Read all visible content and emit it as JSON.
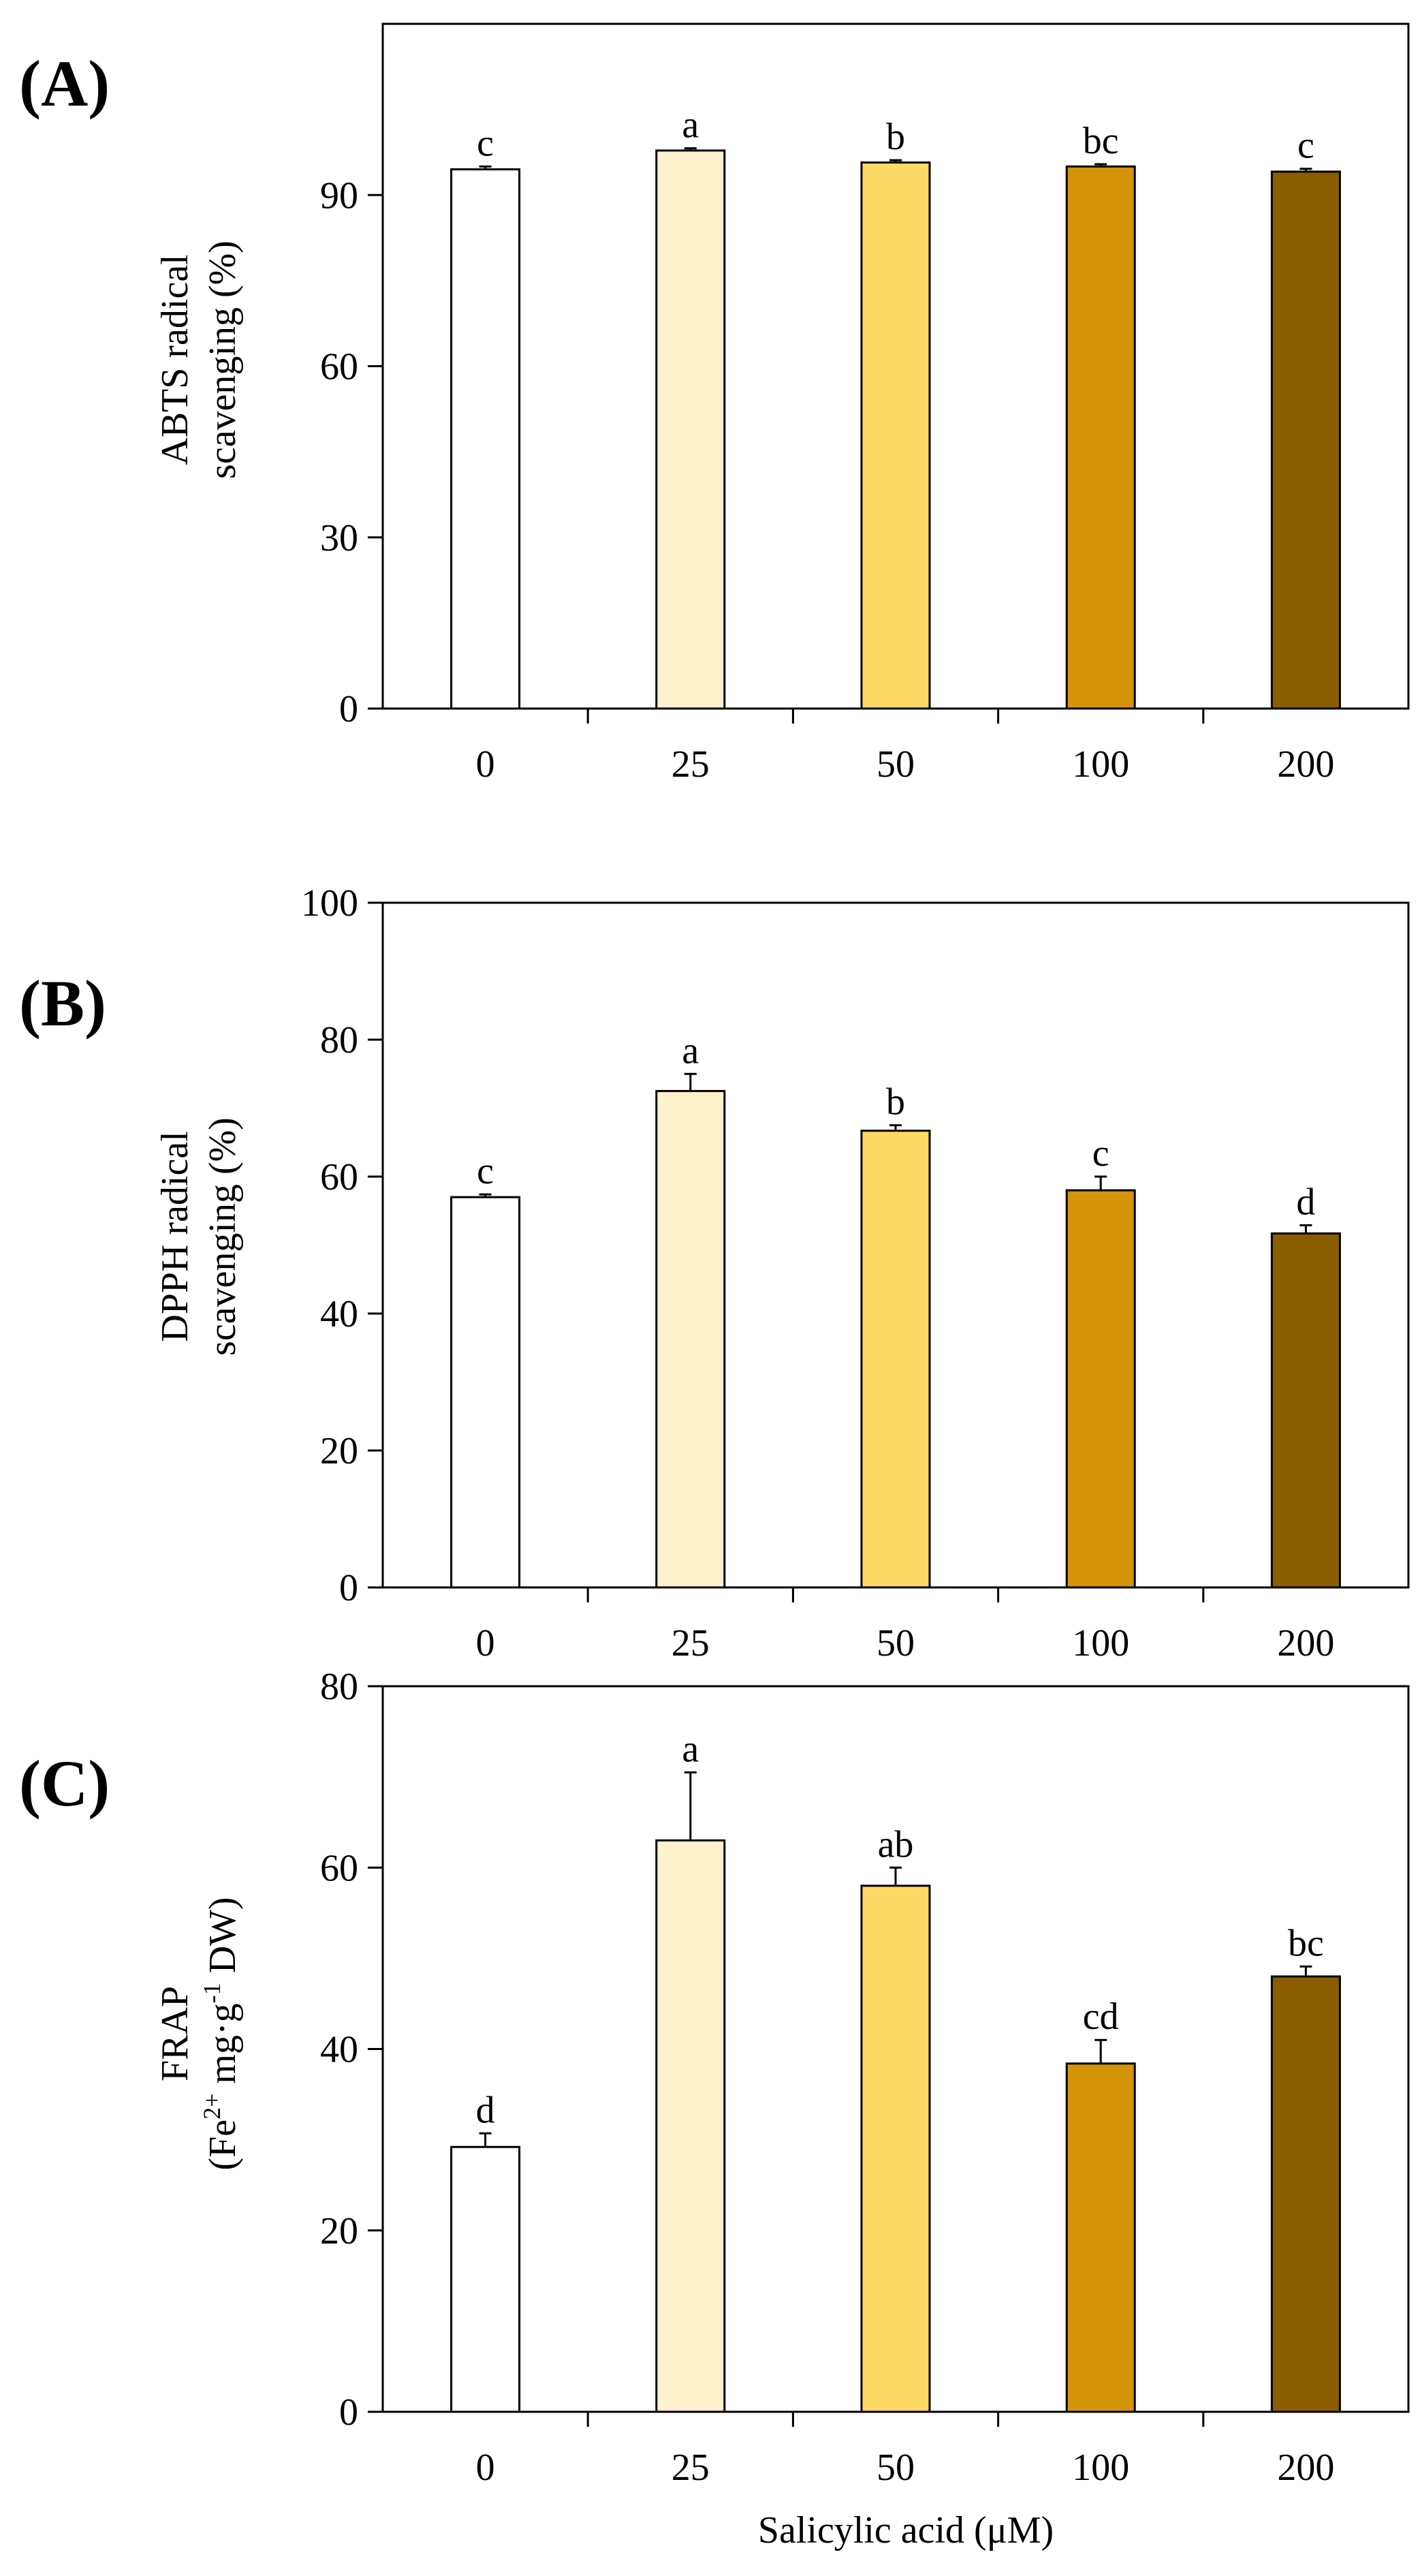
{
  "chart_data": [
    {
      "type": "bar",
      "panel_label": "(A)",
      "categories": [
        "0",
        "25",
        "50",
        "100",
        "200"
      ],
      "values": [
        94.5,
        97.8,
        95.7,
        95.0,
        94.1
      ],
      "errors": [
        0.5,
        0.4,
        0.4,
        0.4,
        0.5
      ],
      "significance": [
        "c",
        "a",
        "b",
        "bc",
        "c"
      ],
      "ylabel_lines": [
        "ABTS radical",
        "scavenging (%)"
      ],
      "ylim": [
        0,
        120
      ],
      "yticks": [
        0,
        30,
        60,
        90
      ],
      "colors": [
        "#FFFFFF",
        "#FFF1CC",
        "#FFD966",
        "#D4940A",
        "#8A5E00"
      ]
    },
    {
      "type": "bar",
      "panel_label": "(B)",
      "categories": [
        "0",
        "25",
        "50",
        "100",
        "200"
      ],
      "values": [
        57.0,
        72.5,
        66.7,
        58.0,
        51.7
      ],
      "errors": [
        0.4,
        2.5,
        0.8,
        2.0,
        1.2
      ],
      "significance": [
        "c",
        "a",
        "b",
        "c",
        "d"
      ],
      "ylabel_lines": [
        "DPPH radical",
        "scavenging (%)"
      ],
      "ylim": [
        0,
        100
      ],
      "yticks": [
        0,
        20,
        40,
        60,
        80,
        100
      ],
      "colors": [
        "#FFFFFF",
        "#FFF1CC",
        "#FFD966",
        "#D4940A",
        "#8A5E00"
      ]
    },
    {
      "type": "bar",
      "panel_label": "(C)",
      "categories": [
        "0",
        "25",
        "50",
        "100",
        "200"
      ],
      "values": [
        29.2,
        63.0,
        58.0,
        38.4,
        48.0
      ],
      "errors": [
        1.5,
        7.5,
        2.0,
        2.6,
        1.1
      ],
      "significance": [
        "d",
        "a",
        "ab",
        "cd",
        "bc"
      ],
      "ylabel": {
        "line1": "FRAP",
        "p1": "(Fe",
        "sup1": "2+",
        "p2": " mg·g",
        "sup2": "-1",
        "p3": " DW)"
      },
      "xlabel": "Salicylic acid (μM)",
      "ylim": [
        0,
        80
      ],
      "yticks": [
        0,
        20,
        40,
        60,
        80
      ],
      "colors": [
        "#FFFFFF",
        "#FFF1CC",
        "#FFD966",
        "#D4940A",
        "#8A5E00"
      ]
    }
  ]
}
